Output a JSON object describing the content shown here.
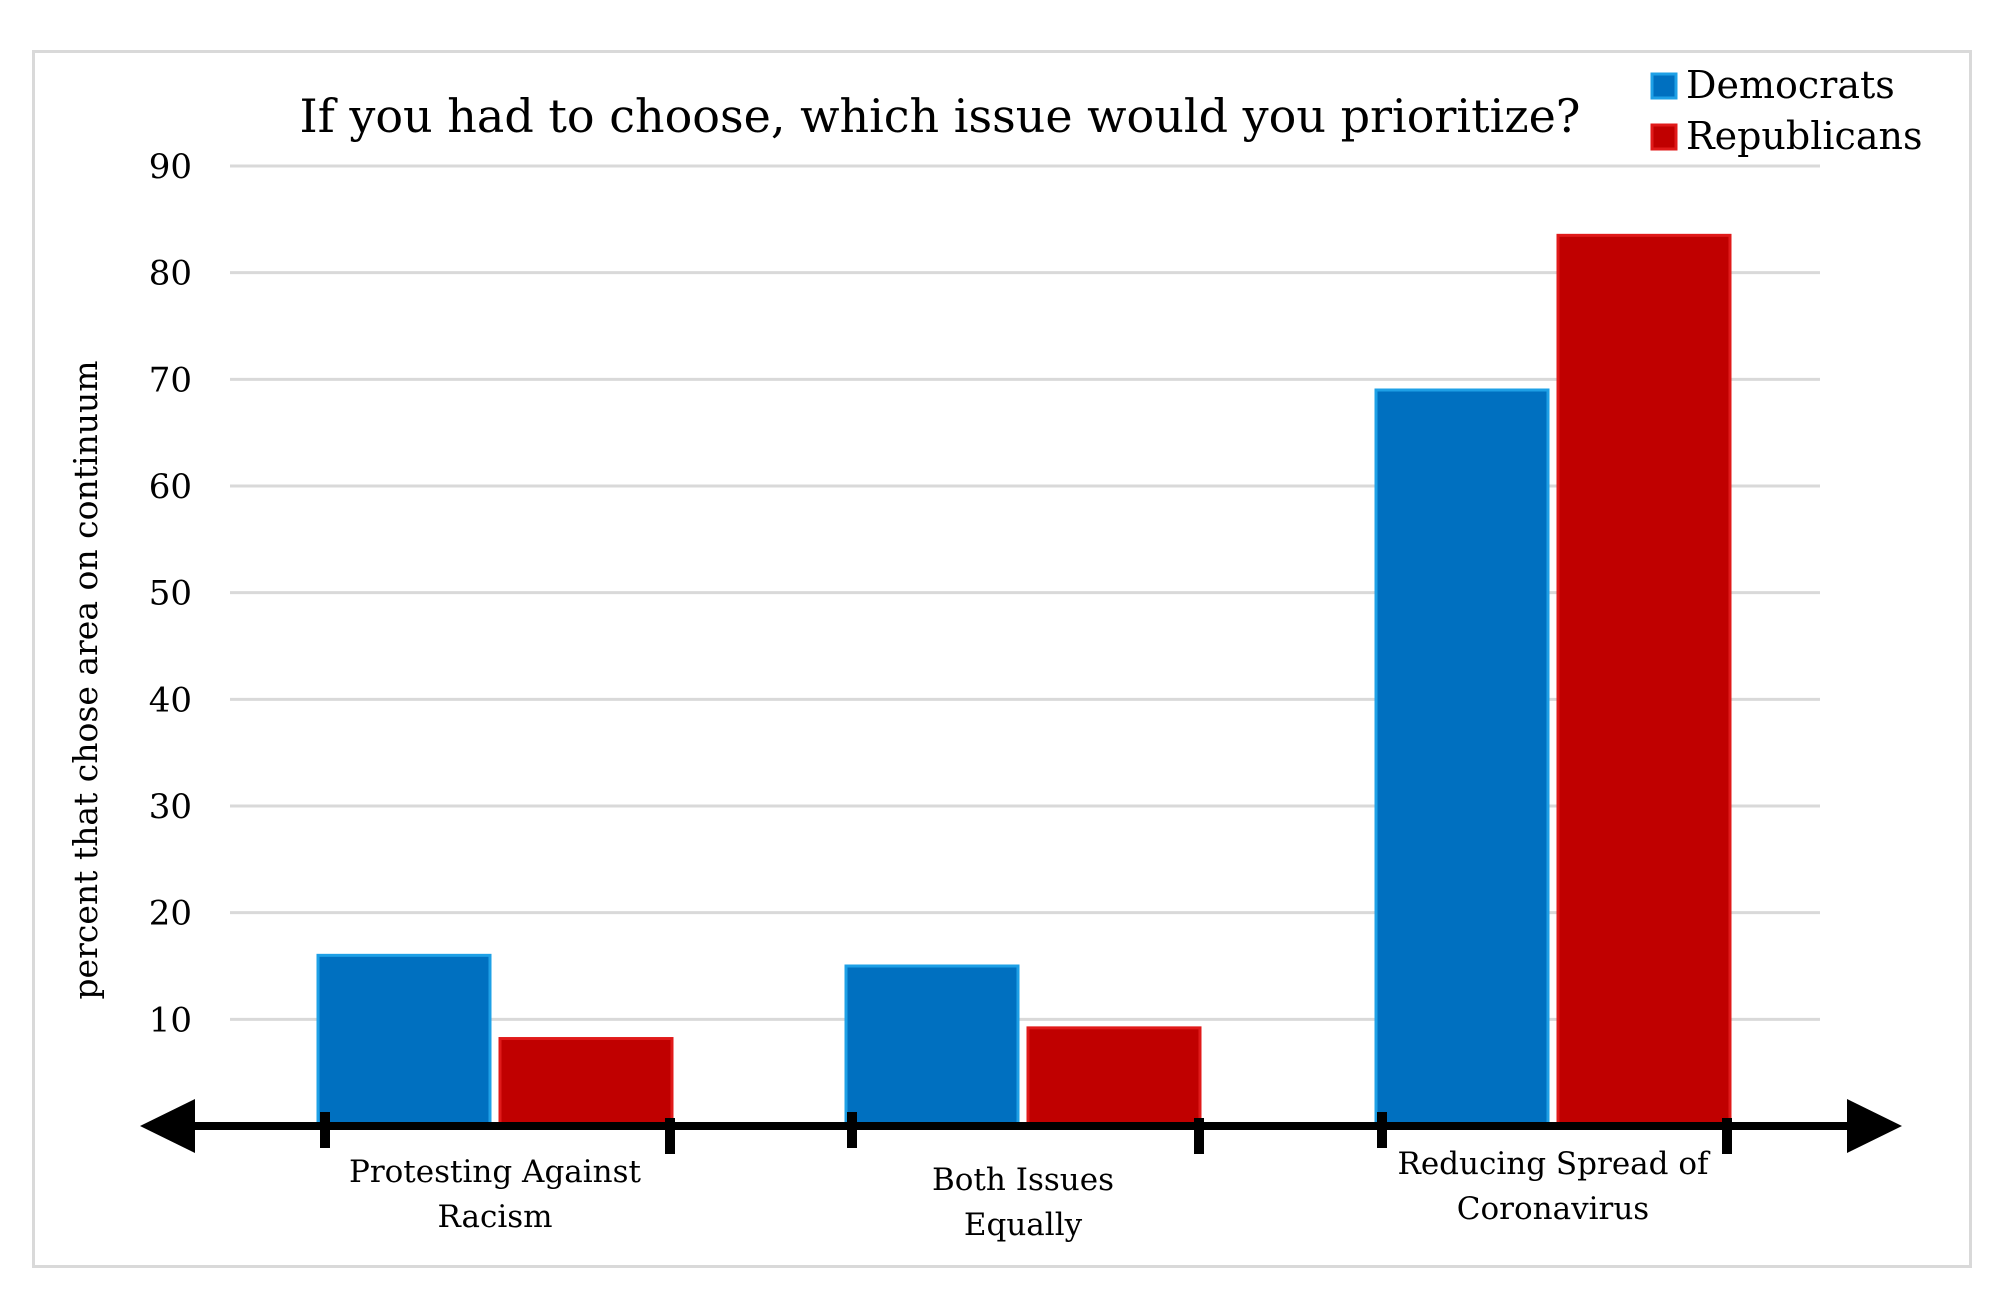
{
  "chart_data": {
    "type": "bar",
    "title": "If you had to choose, which issue would you prioritize?",
    "xlabel": "",
    "ylabel": "percent that chose area on continuum",
    "categories": [
      [
        "Protesting Against",
        "Racism"
      ],
      [
        "Both Issues",
        "Equally"
      ],
      [
        "Reducing Spread of",
        "Coronavirus"
      ]
    ],
    "series": [
      {
        "name": "Democrats",
        "color": "#0070c0",
        "edge": "#1ea0e6",
        "values": [
          16,
          15,
          69
        ]
      },
      {
        "name": "Republicans",
        "color": "#c00000",
        "edge": "#e01a1a",
        "values": [
          8.2,
          9.2,
          83.5
        ]
      }
    ],
    "yticks": [
      10,
      20,
      30,
      40,
      50,
      60,
      70,
      80,
      90
    ],
    "ylim": [
      0,
      90
    ],
    "grid": true,
    "legend": "top-right"
  }
}
